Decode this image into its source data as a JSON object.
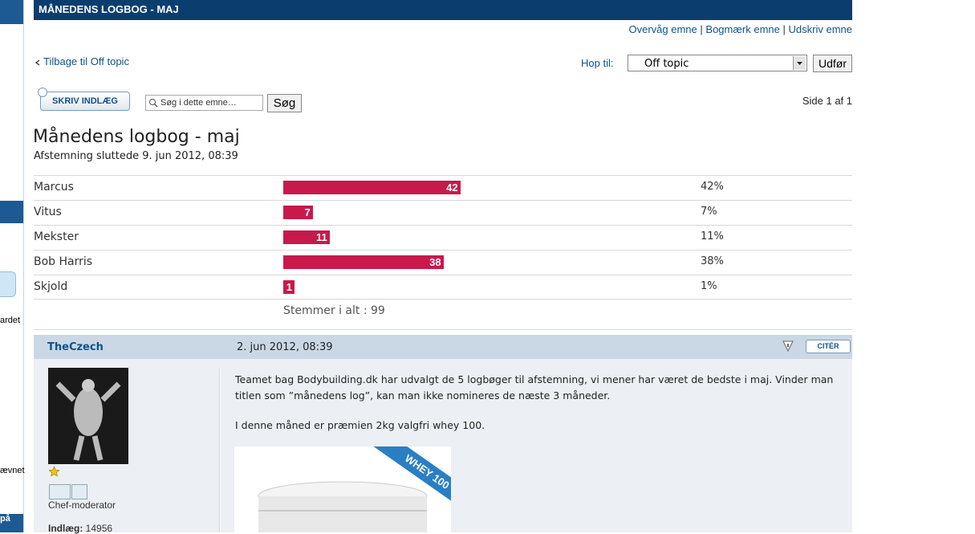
{
  "sidebar": {
    "fragments": [
      "ardet",
      "ævnet",
      "på"
    ]
  },
  "header": {
    "title": "MÅNEDENS LOGBOG - MAJ"
  },
  "topic_links": {
    "items": [
      "Overvåg emne",
      "Bogmærk emne",
      "Udskriv emne"
    ],
    "separator": "|"
  },
  "nav": {
    "back": "Tilbage til Off topic",
    "jump_label": "Hop til:",
    "jump_value": "Off topic",
    "jump_button": "Udfør"
  },
  "toolbar": {
    "post_button": "SKRIV INDLÆG",
    "search_placeholder": "Søg i dette emne…",
    "search_button": "Søg",
    "pagination": "Side 1 af 1"
  },
  "topic": {
    "title": "Månedens logbog - maj",
    "poll_status": "Afstemning sluttede 9. jun 2012, 08:39"
  },
  "poll": {
    "options": [
      {
        "name": "Marcus",
        "votes": 42,
        "percent": "42%"
      },
      {
        "name": "Vitus",
        "votes": 7,
        "percent": "7%"
      },
      {
        "name": "Mekster",
        "votes": 11,
        "percent": "11%"
      },
      {
        "name": "Bob Harris",
        "votes": 38,
        "percent": "38%"
      },
      {
        "name": "Skjold",
        "votes": 1,
        "percent": "1%"
      }
    ],
    "total_label": "Stemmer i alt :",
    "total": 99,
    "bar_color": "#c8194b"
  },
  "post": {
    "author": "TheCzech",
    "date": "2. jun 2012, 08:39",
    "quote_button": "CITÉR",
    "rank": "Chef-moderator",
    "posts_label": "Indlæg:",
    "posts": 14956,
    "paragraphs": [
      "Teamet bag Bodybuilding.dk har udvalgt de 5 logbøger til afstemning, vi mener har været de bedste i maj. Vinder man titlen som ”månedens log”, kan man ikke nomineres de næste 3 måneder.",
      "I denne måned er præmien 2kg valgfri whey 100."
    ],
    "image_banner": "WHEY 100"
  }
}
